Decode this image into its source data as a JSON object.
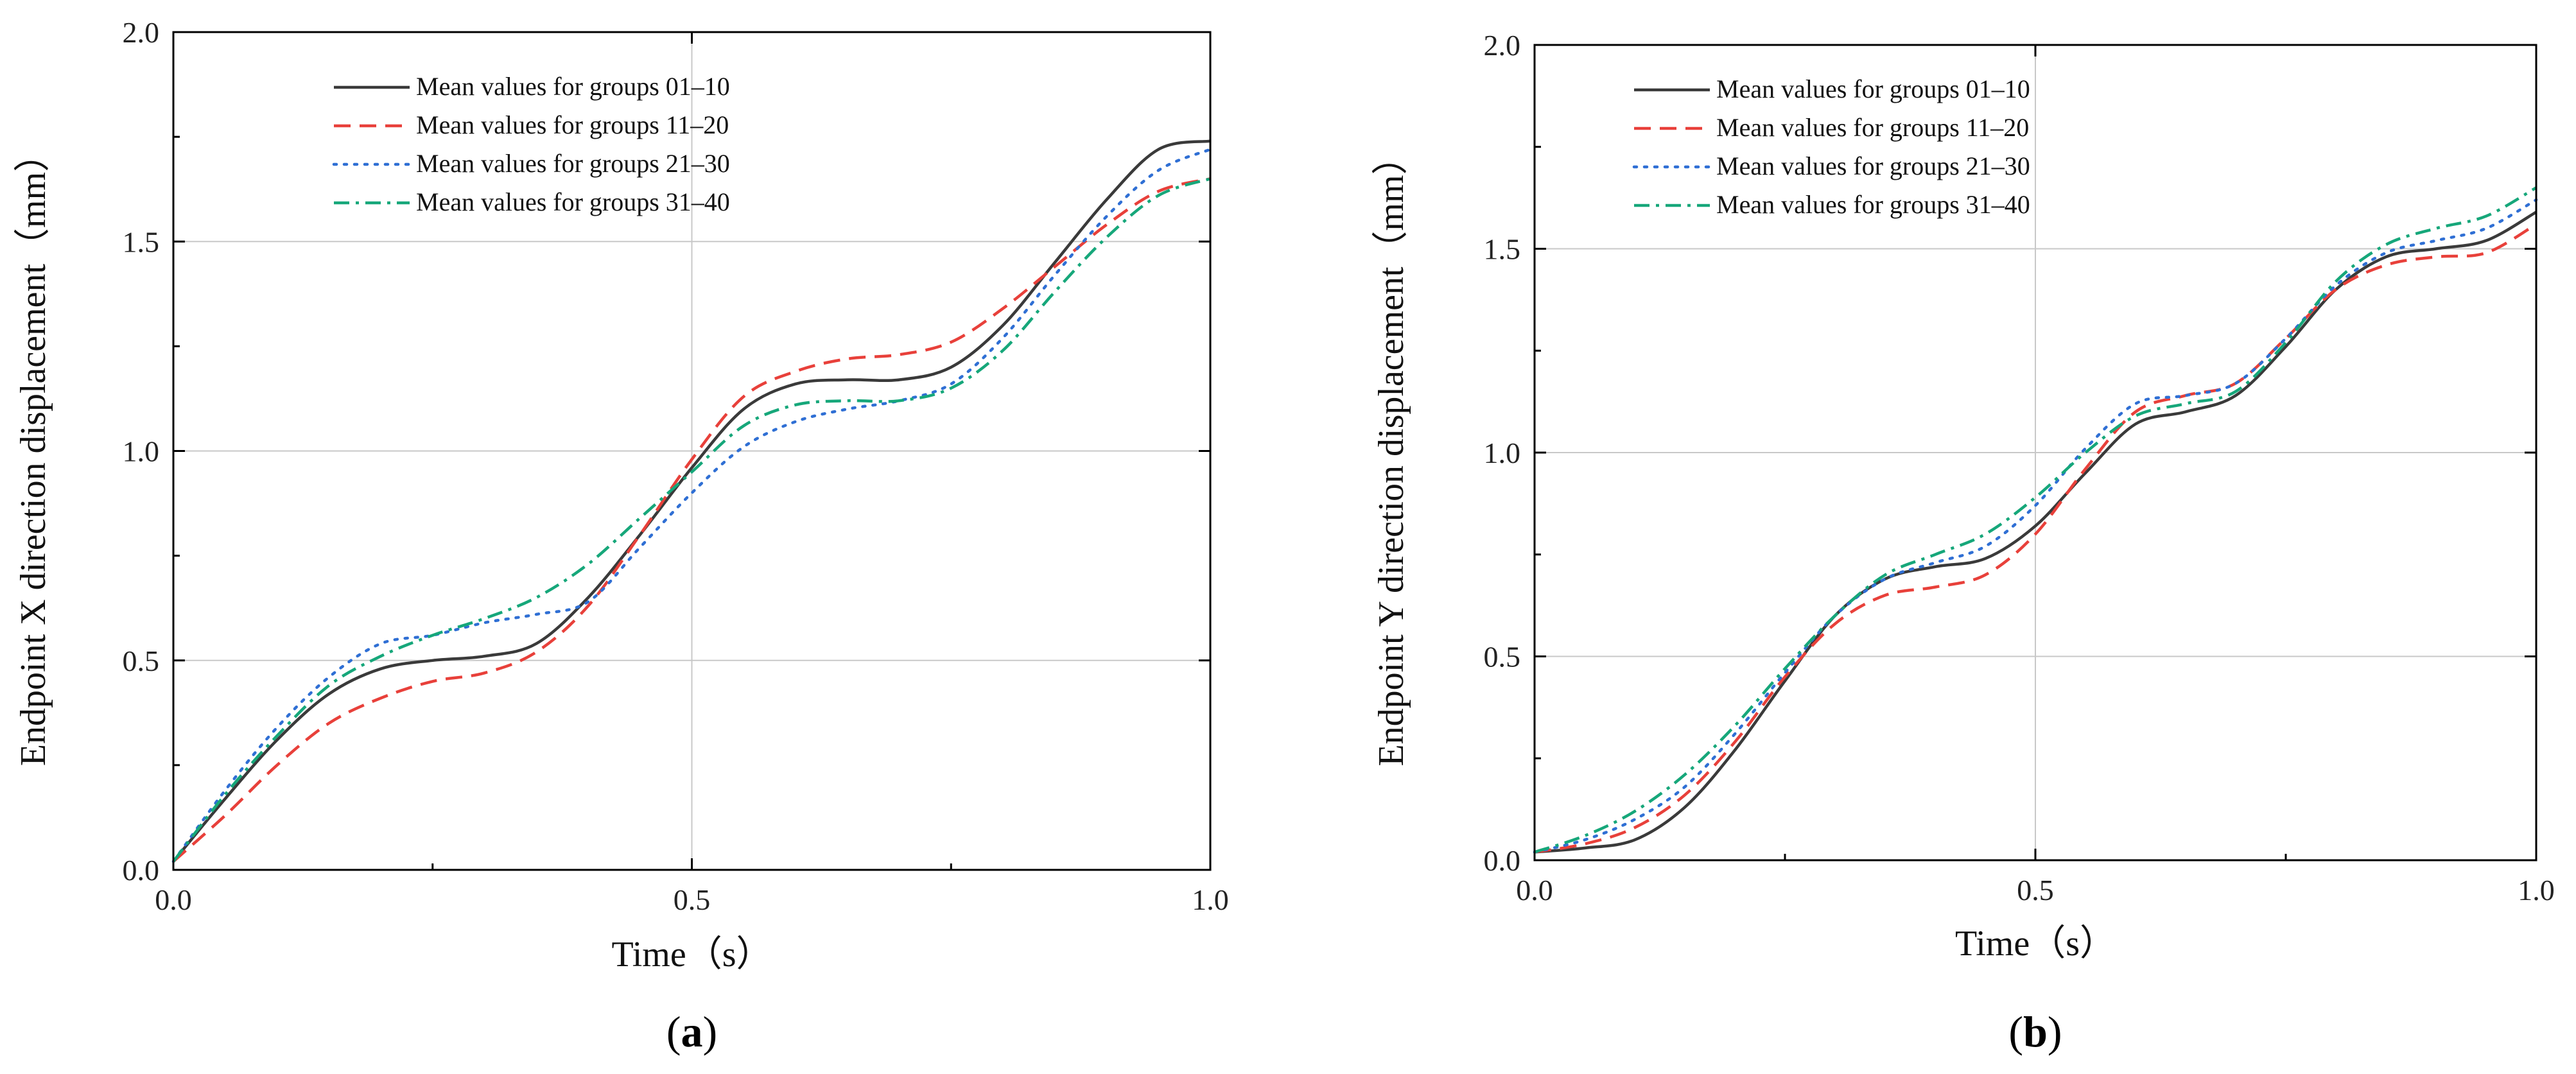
{
  "chart_data": [
    {
      "type": "line",
      "panel_label": "a",
      "xlabel": "Time（s）",
      "ylabel": "Endpoint X direction displacement（mm）",
      "xlim": [
        0,
        1
      ],
      "ylim": [
        0,
        2
      ],
      "x_ticks": [
        "0.0",
        "0.5",
        "1.0"
      ],
      "y_ticks": [
        "0.0",
        "0.5",
        "1.0",
        "1.5",
        "2.0"
      ],
      "grid": true,
      "legend_position": "top-left",
      "x": [
        0,
        0.05,
        0.1,
        0.15,
        0.2,
        0.25,
        0.3,
        0.35,
        0.4,
        0.45,
        0.5,
        0.55,
        0.6,
        0.65,
        0.7,
        0.75,
        0.8,
        0.85,
        0.9,
        0.95,
        1.0
      ],
      "series": [
        {
          "name": "Mean values for groups 01–10",
          "color": "#3a3a3a",
          "dash": "solid",
          "values": [
            0.02,
            0.17,
            0.31,
            0.42,
            0.48,
            0.5,
            0.51,
            0.54,
            0.65,
            0.8,
            0.96,
            1.1,
            1.16,
            1.17,
            1.17,
            1.2,
            1.3,
            1.45,
            1.6,
            1.72,
            1.74
          ]
        },
        {
          "name": "Mean values for groups 11–20",
          "color": "#e8403a",
          "dash": "dashed",
          "values": [
            0.02,
            0.13,
            0.25,
            0.35,
            0.41,
            0.45,
            0.47,
            0.52,
            0.63,
            0.8,
            0.98,
            1.13,
            1.19,
            1.22,
            1.23,
            1.26,
            1.34,
            1.44,
            1.54,
            1.62,
            1.65
          ]
        },
        {
          "name": "Mean values for groups 21–30",
          "color": "#2f6fd4",
          "dash": "dotted",
          "values": [
            0.02,
            0.19,
            0.34,
            0.46,
            0.54,
            0.56,
            0.59,
            0.61,
            0.64,
            0.77,
            0.9,
            1.01,
            1.07,
            1.1,
            1.12,
            1.16,
            1.27,
            1.42,
            1.56,
            1.67,
            1.72
          ]
        },
        {
          "name": "Mean values for groups 31–40",
          "color": "#16a77a",
          "dash": "dashdot",
          "values": [
            0.02,
            0.18,
            0.32,
            0.44,
            0.51,
            0.56,
            0.6,
            0.65,
            0.73,
            0.84,
            0.95,
            1.06,
            1.11,
            1.12,
            1.12,
            1.15,
            1.24,
            1.38,
            1.51,
            1.61,
            1.65
          ]
        }
      ]
    },
    {
      "type": "line",
      "panel_label": "b",
      "xlabel": "Time（s）",
      "ylabel": "Endpoint Y direction displacement（mm）",
      "xlim": [
        0,
        1
      ],
      "ylim": [
        0,
        2
      ],
      "x_ticks": [
        "0.0",
        "0.5",
        "1.0"
      ],
      "y_ticks": [
        "0.0",
        "0.5",
        "1.0",
        "1.5",
        "2.0"
      ],
      "grid": true,
      "legend_position": "top-left",
      "x": [
        0,
        0.05,
        0.1,
        0.15,
        0.2,
        0.25,
        0.3,
        0.35,
        0.4,
        0.45,
        0.5,
        0.55,
        0.6,
        0.65,
        0.7,
        0.75,
        0.8,
        0.85,
        0.9,
        0.95,
        1.0
      ],
      "series": [
        {
          "name": "Mean values for groups 01–10",
          "color": "#3a3a3a",
          "dash": "solid",
          "values": [
            0.02,
            0.03,
            0.05,
            0.13,
            0.27,
            0.44,
            0.6,
            0.69,
            0.72,
            0.74,
            0.82,
            0.95,
            1.07,
            1.1,
            1.14,
            1.26,
            1.4,
            1.48,
            1.5,
            1.52,
            1.59
          ]
        },
        {
          "name": "Mean values for groups 11–20",
          "color": "#e8403a",
          "dash": "dashed",
          "values": [
            0.02,
            0.04,
            0.08,
            0.16,
            0.29,
            0.45,
            0.58,
            0.65,
            0.67,
            0.7,
            0.8,
            0.96,
            1.1,
            1.14,
            1.17,
            1.28,
            1.4,
            1.46,
            1.48,
            1.49,
            1.56
          ]
        },
        {
          "name": "Mean values for groups 21–30",
          "color": "#2f6fd4",
          "dash": "dotted",
          "values": [
            0.02,
            0.05,
            0.1,
            0.18,
            0.31,
            0.46,
            0.6,
            0.69,
            0.73,
            0.77,
            0.87,
            1.01,
            1.12,
            1.14,
            1.17,
            1.28,
            1.41,
            1.49,
            1.52,
            1.55,
            1.62
          ]
        },
        {
          "name": "Mean values for groups 31–40",
          "color": "#16a77a",
          "dash": "dashdot",
          "values": [
            0.02,
            0.06,
            0.12,
            0.21,
            0.33,
            0.47,
            0.6,
            0.7,
            0.75,
            0.8,
            0.89,
            1.0,
            1.09,
            1.12,
            1.15,
            1.27,
            1.42,
            1.51,
            1.55,
            1.58,
            1.65
          ]
        }
      ]
    }
  ]
}
